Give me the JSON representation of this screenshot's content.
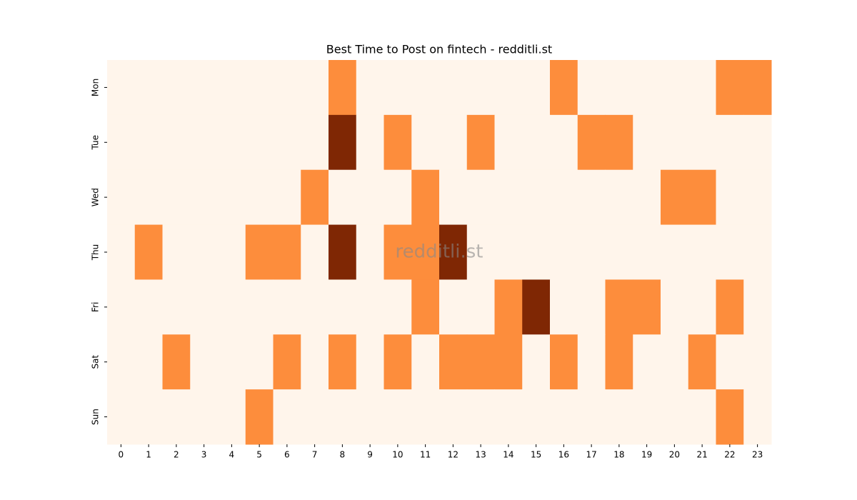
{
  "chart_data": {
    "type": "heatmap",
    "title": "Best Time to Post on fintech - redditli.st",
    "watermark": "redditli.st",
    "x": [
      "0",
      "1",
      "2",
      "3",
      "4",
      "5",
      "6",
      "7",
      "8",
      "9",
      "10",
      "11",
      "12",
      "13",
      "14",
      "15",
      "16",
      "17",
      "18",
      "19",
      "20",
      "21",
      "22",
      "23"
    ],
    "y": [
      "Mon",
      "Tue",
      "Wed",
      "Thu",
      "Fri",
      "Sat",
      "Sun"
    ],
    "values": [
      [
        0,
        0,
        0,
        0,
        0,
        0,
        0,
        0,
        1,
        0,
        0,
        0,
        0,
        0,
        0,
        0,
        1,
        0,
        0,
        0,
        0,
        0,
        1,
        1
      ],
      [
        0,
        0,
        0,
        0,
        0,
        0,
        0,
        0,
        2,
        0,
        1,
        0,
        0,
        1,
        0,
        0,
        0,
        1,
        1,
        0,
        0,
        0,
        0,
        0
      ],
      [
        0,
        0,
        0,
        0,
        0,
        0,
        0,
        1,
        0,
        0,
        0,
        1,
        0,
        0,
        0,
        0,
        0,
        0,
        0,
        0,
        1,
        1,
        0,
        0
      ],
      [
        0,
        1,
        0,
        0,
        0,
        1,
        1,
        0,
        2,
        0,
        1,
        1,
        2,
        0,
        0,
        0,
        0,
        0,
        0,
        0,
        0,
        0,
        0,
        0
      ],
      [
        0,
        0,
        0,
        0,
        0,
        0,
        0,
        0,
        0,
        0,
        0,
        1,
        0,
        0,
        1,
        2,
        0,
        0,
        1,
        1,
        0,
        0,
        1,
        0
      ],
      [
        0,
        0,
        1,
        0,
        0,
        0,
        1,
        0,
        1,
        0,
        1,
        0,
        1,
        1,
        1,
        0,
        1,
        0,
        1,
        0,
        0,
        1,
        0,
        0
      ],
      [
        0,
        0,
        0,
        0,
        0,
        1,
        0,
        0,
        0,
        0,
        0,
        0,
        0,
        0,
        0,
        0,
        0,
        0,
        0,
        0,
        0,
        0,
        1,
        0
      ]
    ],
    "colors": [
      "#fff5eb",
      "#fd8d3c",
      "#7f2704"
    ]
  }
}
